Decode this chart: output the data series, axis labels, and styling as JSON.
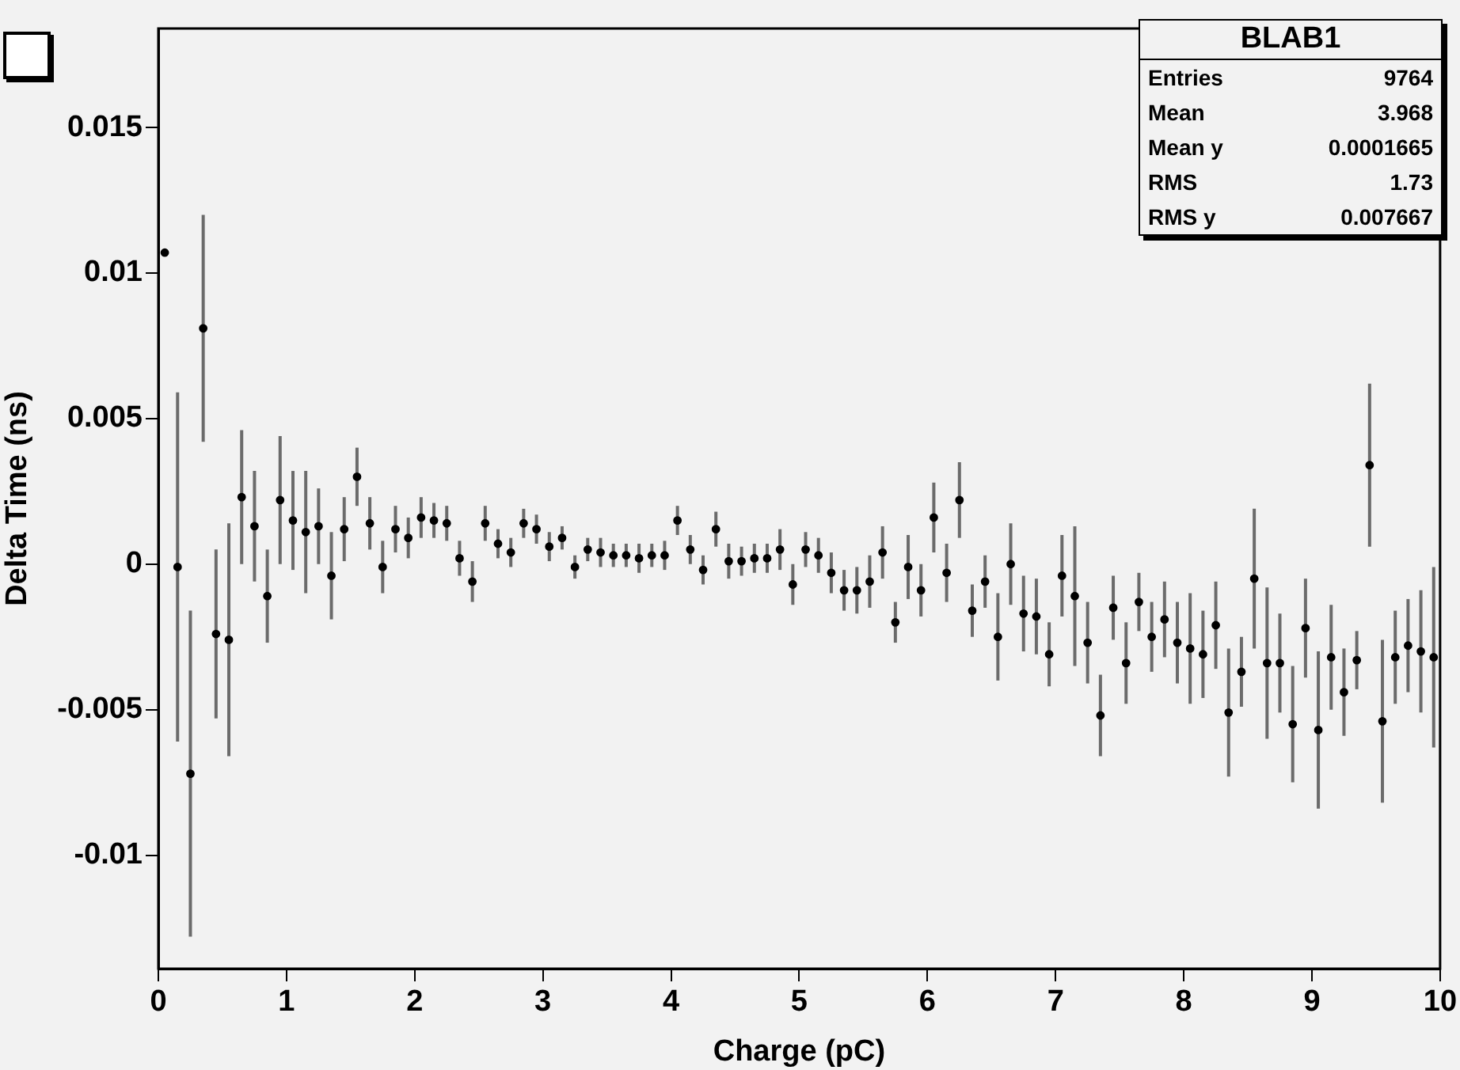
{
  "chart_data": {
    "type": "scatter",
    "xlabel": "Charge (pC)",
    "ylabel": "Delta Time (ns)",
    "xlim": [
      0,
      10
    ],
    "xticks": [
      0,
      1,
      2,
      3,
      4,
      5,
      6,
      7,
      8,
      9,
      10
    ],
    "ylim": [
      -0.0139,
      0.0184
    ],
    "yticks": [
      -0.01,
      -0.005,
      0,
      0.005,
      0.01,
      0.015
    ],
    "grid": false,
    "legend": false,
    "marker": "circle",
    "annotations": [
      "BLAB1",
      "Entries 9764",
      "Mean 3.968",
      "Mean y 0.0001665",
      "RMS 1.73",
      "RMS y 0.007667"
    ],
    "series": [
      {
        "color": "#000000",
        "x": [
          0.05,
          0.15,
          0.25,
          0.35,
          0.45,
          0.55,
          0.65,
          0.75,
          0.85,
          0.95,
          1.05,
          1.15,
          1.25,
          1.35,
          1.45,
          1.55,
          1.65,
          1.75,
          1.85,
          1.95,
          2.05,
          2.15,
          2.25,
          2.35,
          2.45,
          2.55,
          2.65,
          2.75,
          2.85,
          2.95,
          3.05,
          3.15,
          3.25,
          3.35,
          3.45,
          3.55,
          3.65,
          3.75,
          3.85,
          3.95,
          4.05,
          4.15,
          4.25,
          4.35,
          4.45,
          4.55,
          4.65,
          4.75,
          4.85,
          4.95,
          5.05,
          5.15,
          5.25,
          5.35,
          5.45,
          5.55,
          5.65,
          5.75,
          5.85,
          5.95,
          6.05,
          6.15,
          6.25,
          6.35,
          6.45,
          6.55,
          6.65,
          6.75,
          6.85,
          6.95,
          7.05,
          7.15,
          7.25,
          7.35,
          7.45,
          7.55,
          7.65,
          7.75,
          7.85,
          7.95,
          8.05,
          8.15,
          8.25,
          8.35,
          8.45,
          8.55,
          8.65,
          8.75,
          8.85,
          8.95,
          9.05,
          9.15,
          9.25,
          9.35,
          9.45,
          9.55,
          9.65,
          9.75,
          9.85,
          9.95
        ],
        "values": [
          0.0107,
          -0.0001,
          -0.0072,
          0.0081,
          -0.0024,
          -0.0026,
          0.0023,
          0.0013,
          -0.0011,
          0.0022,
          0.0015,
          0.0011,
          0.0013,
          -0.0004,
          0.0012,
          0.003,
          0.0014,
          -0.0001,
          0.0012,
          0.0009,
          0.0016,
          0.0015,
          0.0014,
          0.0002,
          -0.0006,
          0.0014,
          0.0007,
          0.0004,
          0.0014,
          0.0012,
          0.0006,
          0.0009,
          -0.0001,
          0.0005,
          0.0004,
          0.0003,
          0.0003,
          0.0002,
          0.0003,
          0.0003,
          0.0015,
          0.0005,
          -0.0002,
          0.0012,
          0.0001,
          0.0001,
          0.0002,
          0.0002,
          0.0005,
          -0.0007,
          0.0005,
          0.0003,
          -0.0003,
          -0.0009,
          -0.0009,
          -0.0006,
          0.0004,
          -0.002,
          -0.0001,
          -0.0009,
          0.0016,
          -0.0003,
          0.0022,
          -0.0016,
          -0.0006,
          -0.0025,
          0.0,
          -0.0017,
          -0.0018,
          -0.0031,
          -0.0004,
          -0.0011,
          -0.0027,
          -0.0052,
          -0.0015,
          -0.0034,
          -0.0013,
          -0.0025,
          -0.0019,
          -0.0027,
          -0.0029,
          -0.0031,
          -0.0021,
          -0.0051,
          -0.0037,
          -0.0005,
          -0.0034,
          -0.0034,
          -0.0055,
          -0.0022,
          -0.0057,
          -0.0032,
          -0.0044,
          -0.0033,
          0.0034,
          -0.0054,
          -0.0032,
          -0.0028,
          -0.003,
          -0.0032
        ],
        "errors": [
          null,
          0.006,
          0.0056,
          0.0039,
          0.0029,
          0.004,
          0.0023,
          0.0019,
          0.0016,
          0.0022,
          0.0017,
          0.0021,
          0.0013,
          0.0015,
          0.0011,
          0.001,
          0.0009,
          0.0009,
          0.0008,
          0.0007,
          0.0007,
          0.0006,
          0.0006,
          0.0006,
          0.0007,
          0.0006,
          0.0005,
          0.0005,
          0.0005,
          0.0005,
          0.0005,
          0.0004,
          0.0004,
          0.0004,
          0.0005,
          0.0004,
          0.0004,
          0.0005,
          0.0004,
          0.0005,
          0.0005,
          0.0005,
          0.0005,
          0.0006,
          0.0006,
          0.0005,
          0.0005,
          0.0005,
          0.0007,
          0.0007,
          0.0006,
          0.0006,
          0.0007,
          0.0007,
          0.0008,
          0.0009,
          0.0009,
          0.0007,
          0.0011,
          0.0009,
          0.0012,
          0.001,
          0.0013,
          0.0009,
          0.0009,
          0.0015,
          0.0014,
          0.0013,
          0.0013,
          0.0011,
          0.0014,
          0.0024,
          0.0014,
          0.0014,
          0.0011,
          0.0014,
          0.001,
          0.0012,
          0.0013,
          0.0014,
          0.0019,
          0.0015,
          0.0015,
          0.0022,
          0.0012,
          0.0024,
          0.0026,
          0.0017,
          0.002,
          0.0017,
          0.0027,
          0.0018,
          0.0015,
          0.001,
          0.0028,
          0.0028,
          0.0016,
          0.0016,
          0.0021,
          0.0031
        ]
      }
    ]
  }
}
